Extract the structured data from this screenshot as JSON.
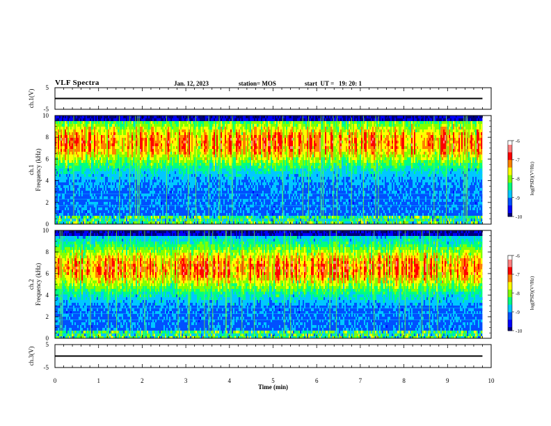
{
  "header": {
    "title": "VLF Spectra",
    "date": "Jan. 12, 2023",
    "station": "station= MOS",
    "start": "start  UT =   19: 20: 1"
  },
  "colors": {
    "cmap": [
      "#00007a",
      "#0000ff",
      "#0050ff",
      "#00c8ff",
      "#00ff80",
      "#80ff00",
      "#ffff00",
      "#ff8000",
      "#ff0000",
      "#ff8080",
      "#ffffff"
    ],
    "trace": "#000000",
    "frame": "#000000"
  },
  "chart_data": [
    {
      "type": "line",
      "panel": "ch1-waveform",
      "ylabel": "ch.1(V)",
      "ylim": [
        -5,
        5
      ],
      "yticks": [
        "5",
        "-5"
      ],
      "xlim": [
        0,
        10
      ],
      "series": [
        {
          "x": [
            0,
            9.8
          ],
          "y": [
            0,
            0
          ]
        }
      ]
    },
    {
      "type": "heatmap",
      "panel": "ch1-spectrogram",
      "ylabel": "ch.1\nFrequency (kHz)",
      "xlim": [
        0,
        10
      ],
      "ylim": [
        0,
        10
      ],
      "yticks": [
        "0",
        "2",
        "4",
        "6",
        "8",
        "10"
      ],
      "data_x_end": 9.8,
      "band_center_khz": 7.5,
      "colorbar": {
        "label": "log(PSD)(V²/Hz)",
        "range": [
          -10,
          -6
        ],
        "ticks": [
          "-6",
          "-7",
          "-8",
          "-9",
          "-10"
        ]
      }
    },
    {
      "type": "heatmap",
      "panel": "ch2-spectrogram",
      "ylabel": "ch.2\nFrequency (kHz)",
      "xlim": [
        0,
        10
      ],
      "ylim": [
        0,
        10
      ],
      "yticks": [
        "0",
        "2",
        "4",
        "6",
        "8",
        "10"
      ],
      "data_x_end": 9.8,
      "band_center_khz": 6.5,
      "colorbar": {
        "label": "log(PSD)(V²/Hz)",
        "range": [
          -10,
          -6
        ],
        "ticks": [
          "-6",
          "-7",
          "-8",
          "-9",
          "-10"
        ]
      }
    },
    {
      "type": "line",
      "panel": "ch3-waveform",
      "ylabel": "ch.3(V)",
      "ylim": [
        -5,
        5
      ],
      "yticks": [
        "5",
        "-5"
      ],
      "xlim": [
        0,
        10
      ],
      "xlabel": "Time (min)",
      "xticks": [
        "0",
        "1",
        "2",
        "3",
        "4",
        "5",
        "6",
        "7",
        "8",
        "9",
        "10"
      ],
      "series": [
        {
          "x": [
            0,
            9.8
          ],
          "y": [
            0,
            0
          ]
        }
      ]
    }
  ]
}
